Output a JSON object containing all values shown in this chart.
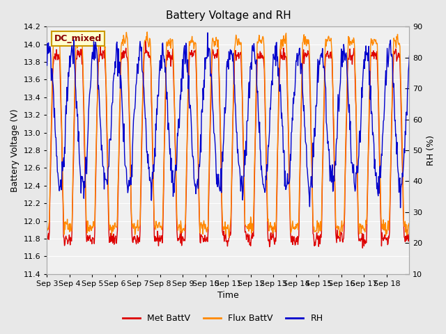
{
  "title": "Battery Voltage and RH",
  "xlabel": "Time",
  "ylabel_left": "Battery Voltage (V)",
  "ylabel_right": "RH (%)",
  "annotation": "DC_mixed",
  "ylim_left": [
    11.4,
    14.2
  ],
  "ylim_right": [
    10,
    90
  ],
  "yticks_left": [
    11.4,
    11.6,
    11.8,
    12.0,
    12.2,
    12.4,
    12.6,
    12.8,
    13.0,
    13.2,
    13.4,
    13.6,
    13.8,
    14.0,
    14.2
  ],
  "yticks_right": [
    10,
    20,
    30,
    40,
    50,
    60,
    70,
    80,
    90
  ],
  "xtick_labels": [
    "Sep 3",
    "Sep 4",
    "Sep 5",
    "Sep 6",
    "Sep 7",
    "Sep 8",
    "Sep 9",
    "Sep 10",
    "Sep 11",
    "Sep 12",
    "Sep 13",
    "Sep 14",
    "Sep 15",
    "Sep 16",
    "Sep 17",
    "Sep 18"
  ],
  "color_met": "#dd0000",
  "color_flux": "#ff8800",
  "color_rh": "#0000cc",
  "bg_color": "#e8e8e8",
  "plot_bg_color": "#f0f0f0",
  "legend_labels": [
    "Met BattV",
    "Flux BattV",
    "RH"
  ],
  "grid_color": "#ffffff",
  "n_days": 16,
  "n_points_per_day": 48
}
